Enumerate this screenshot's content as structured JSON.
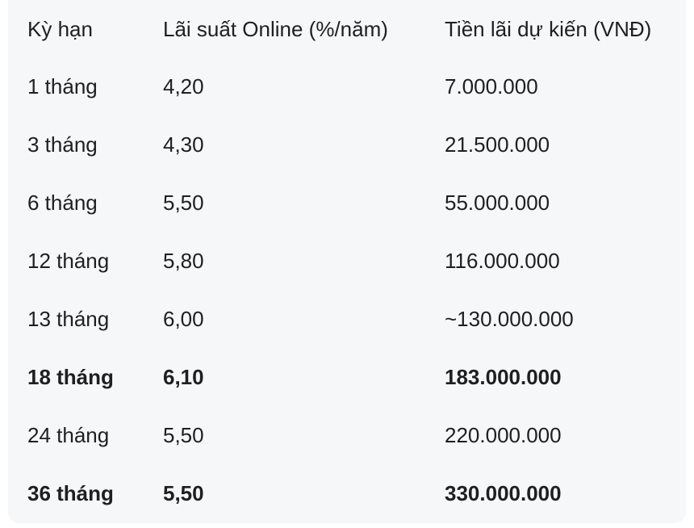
{
  "table": {
    "headers": [
      "Kỳ hạn",
      "Lãi suất Online (%/năm)",
      "Tiền lãi dự kiến (VNĐ)"
    ],
    "rows": [
      {
        "cells": [
          "1 tháng",
          "4,20",
          "7.000.000"
        ]
      },
      {
        "cells": [
          "3 tháng",
          "4,30",
          "21.500.000"
        ]
      },
      {
        "cells": [
          "6 tháng",
          "5,50",
          "55.000.000"
        ]
      },
      {
        "cells": [
          "12 tháng",
          "5,80",
          "116.000.000"
        ]
      },
      {
        "cells": [
          "13 tháng",
          "6,00",
          "~130.000.000"
        ]
      },
      {
        "cells": [
          "18 tháng",
          "6,10",
          "183.000.000"
        ],
        "bold": true
      },
      {
        "cells": [
          "24 tháng",
          "5,50",
          "220.000.000"
        ]
      },
      {
        "cells": [
          "36 tháng",
          "5,50",
          "330.000.000"
        ],
        "bold": true
      }
    ]
  }
}
